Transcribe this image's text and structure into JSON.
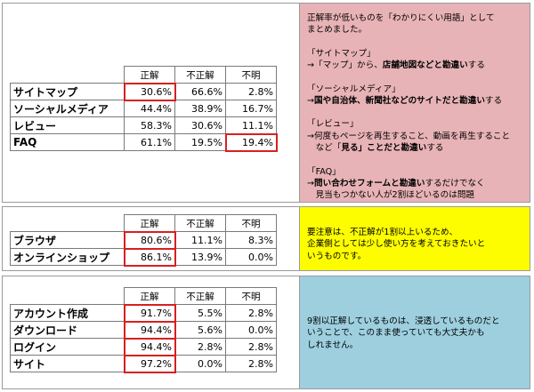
{
  "headers": [
    "正解",
    "不正解",
    "不明"
  ],
  "group1": {
    "rows": [
      {
        "label": "サイトマップ",
        "v": [
          "30.6%",
          "66.6%",
          "2.8%"
        ]
      },
      {
        "label": "ソーシャルメディア",
        "v": [
          "44.4%",
          "38.9%",
          "16.7%"
        ]
      },
      {
        "label": "レビュー",
        "v": [
          "58.3%",
          "30.6%",
          "11.1%"
        ]
      },
      {
        "label": "FAQ",
        "v": [
          "61.1%",
          "19.5%",
          "19.4%"
        ]
      }
    ],
    "note": {
      "l1": "正解率が低いものを「わかりにくい用語」として",
      "l2": "まとめました。",
      "s1_title": "「サイトマップ」",
      "s1_a": "→「マップ」から、",
      "s1_b": "店舗地図などと勘違い",
      "s1_c": "する",
      "s2_title": "「ソーシャルメディア」",
      "s2_a": "→",
      "s2_b": "国や自治体、新聞社などのサイトだと勘違い",
      "s2_c": "する",
      "s3_title": "「レビュー」",
      "s3_l1": "→何度もページを再生すること、動画を再生すること",
      "s3_a": "　など「",
      "s3_b": "見る」ことだと勘違い",
      "s3_c": "する",
      "s4_title": "「FAQ」",
      "s4_a": "→",
      "s4_b": "問い合わせフォームと勘違い",
      "s4_c": "するだけでなく",
      "s4_l2": "　見当もつかない人が2割ほどいるのは問題"
    }
  },
  "group2": {
    "rows": [
      {
        "label": "ブラウザ",
        "v": [
          "80.6%",
          "11.1%",
          "8.3%"
        ]
      },
      {
        "label": "オンラインショップ",
        "v": [
          "86.1%",
          "13.9%",
          "0.0%"
        ]
      }
    ],
    "note": {
      "l1": "要注意は、不正解が1割以上いるため、",
      "l2": "企業側としては少し使い方を考えておきたいと",
      "l3": "いうものです。"
    }
  },
  "group3": {
    "rows": [
      {
        "label": "アカウント作成",
        "v": [
          "91.7%",
          "5.5%",
          "2.8%"
        ]
      },
      {
        "label": "ダウンロード",
        "v": [
          "94.4%",
          "5.6%",
          "0.0%"
        ]
      },
      {
        "label": "ログイン",
        "v": [
          "94.4%",
          "2.8%",
          "2.8%"
        ]
      },
      {
        "label": "サイト",
        "v": [
          "97.2%",
          "0.0%",
          "2.8%"
        ]
      }
    ],
    "note": {
      "l1": "9割以正解しているものは、浸透しているものだと",
      "l2": "いうことで、このまま使っていても大丈夫かも",
      "l3": "しれません。"
    }
  },
  "colors": {
    "highlight": "#d62020",
    "note_pink": "#e8b3b6",
    "note_yellow": "#fdfd00",
    "note_blue": "#9dcfdf"
  }
}
